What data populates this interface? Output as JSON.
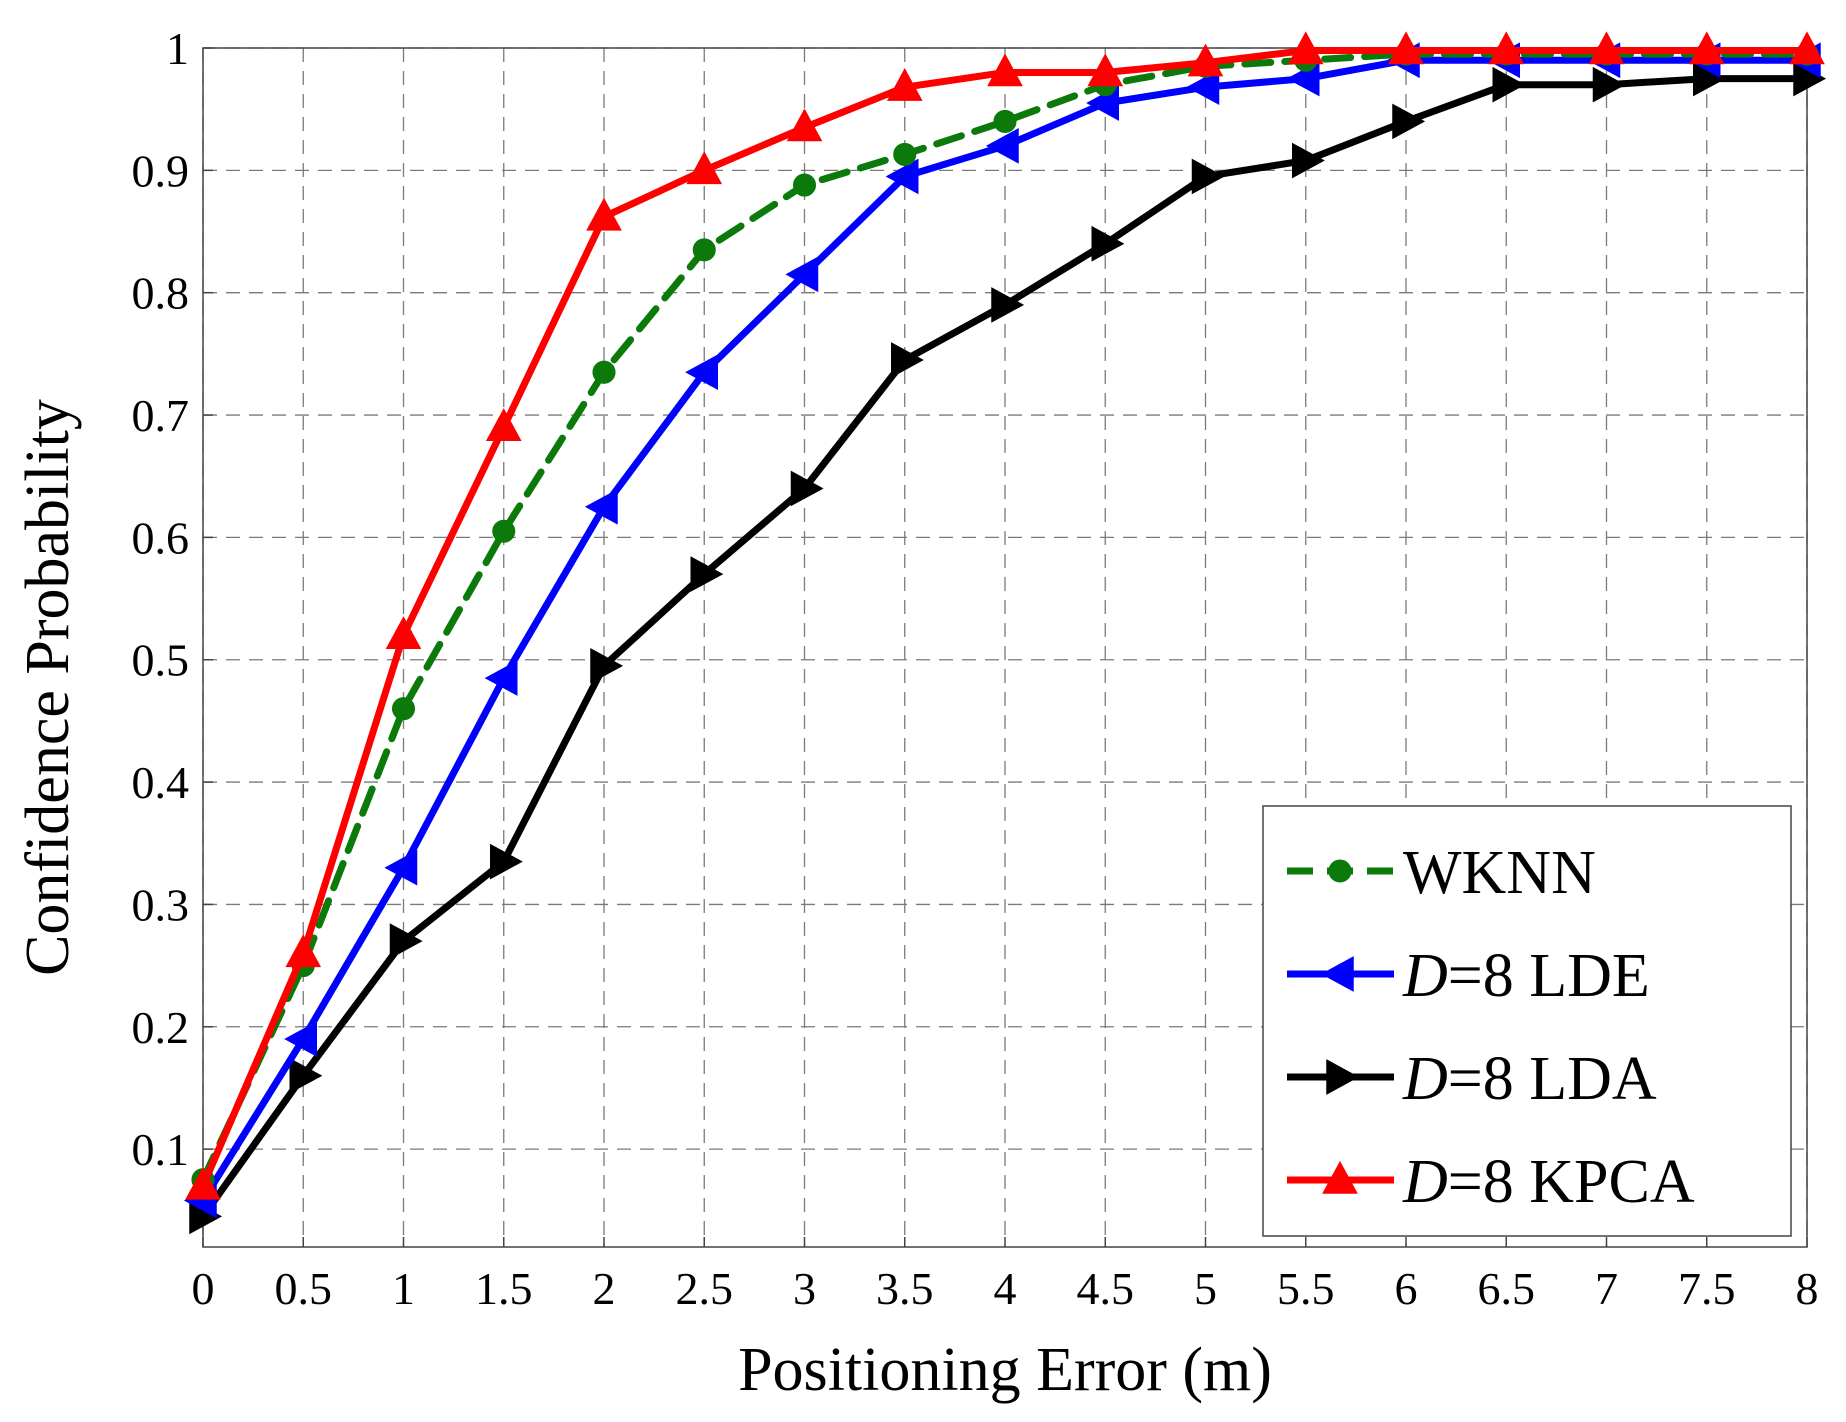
{
  "chart_data": {
    "type": "line",
    "title": "",
    "xlabel": "Positioning Error (m)",
    "ylabel": "Confidence Probability",
    "xlim": [
      0,
      8
    ],
    "ylim": [
      0.02,
      1
    ],
    "x_ticks": [
      "0",
      "0.5",
      "1",
      "1.5",
      "2",
      "2.5",
      "3",
      "3.5",
      "4",
      "4.5",
      "5",
      "5.5",
      "6",
      "6.5",
      "7",
      "7.5",
      "8"
    ],
    "y_ticks": [
      "0.1",
      "0.2",
      "0.3",
      "0.4",
      "0.5",
      "0.6",
      "0.7",
      "0.8",
      "0.9",
      "1"
    ],
    "grid": true,
    "legend_position": "bottom-right",
    "x": [
      0,
      0.5,
      1,
      1.5,
      2,
      2.5,
      3,
      3.5,
      4,
      4.5,
      5,
      5.5,
      6,
      6.5,
      7,
      7.5,
      8
    ],
    "series": [
      {
        "name": "WKNN",
        "legend_prefix": "",
        "legend_suffix": "WKNN",
        "color": "#0b7a0b",
        "dash": true,
        "marker": "circle",
        "values": [
          0.075,
          0.25,
          0.46,
          0.605,
          0.735,
          0.835,
          0.888,
          0.913,
          0.94,
          0.97,
          0.985,
          0.99,
          0.995,
          0.995,
          0.995,
          0.995,
          0.995
        ]
      },
      {
        "name": "D=8 LDE",
        "legend_prefix": "D",
        "legend_suffix": "=8 LDE",
        "color": "#0000ff",
        "dash": false,
        "marker": "triangle-left",
        "values": [
          0.058,
          0.19,
          0.33,
          0.485,
          0.625,
          0.735,
          0.815,
          0.895,
          0.92,
          0.955,
          0.968,
          0.975,
          0.99,
          0.99,
          0.99,
          0.99,
          0.99
        ]
      },
      {
        "name": "D=8 LDA",
        "legend_prefix": "D",
        "legend_suffix": "=8 LDA",
        "color": "#000000",
        "dash": false,
        "marker": "triangle-right",
        "values": [
          0.045,
          0.16,
          0.27,
          0.335,
          0.495,
          0.57,
          0.64,
          0.745,
          0.79,
          0.84,
          0.895,
          0.908,
          0.94,
          0.97,
          0.97,
          0.975,
          0.975
        ]
      },
      {
        "name": "D=8 KPCA",
        "legend_prefix": "D",
        "legend_suffix": "=8 KPCA",
        "color": "#ff0000",
        "dash": false,
        "marker": "triangle-up",
        "values": [
          0.07,
          0.26,
          0.52,
          0.69,
          0.862,
          0.9,
          0.935,
          0.968,
          0.98,
          0.98,
          0.988,
          0.998,
          0.998,
          0.998,
          0.998,
          0.998,
          0.998
        ]
      }
    ]
  }
}
